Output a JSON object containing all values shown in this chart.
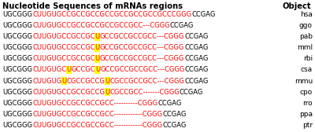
{
  "title": "Nucleotide Sequences of mRNAs regions",
  "title_right": "Object",
  "font_family": "Courier New",
  "title_fontsize": 7.2,
  "seq_fontsize": 6.0,
  "label_fontsize": 6.5,
  "rows": [
    {
      "object": "hsa",
      "segments": [
        {
          "text": "UGCGGG",
          "color": "black",
          "highlight": false
        },
        {
          "text": "CUUGUGCCGCCGCCGCCGCCGCCGCCGCCCGGG",
          "color": "red",
          "highlight": false
        },
        {
          "text": "CCGAG",
          "color": "black",
          "highlight": false
        }
      ]
    },
    {
      "object": "ggo",
      "segments": [
        {
          "text": "UGCGGG",
          "color": "black",
          "highlight": false
        },
        {
          "text": "CUUGUGCCGCCGCCGCCGCCGCC---CGGG",
          "color": "red",
          "highlight": false
        },
        {
          "text": "CCGAG",
          "color": "black",
          "highlight": false
        }
      ]
    },
    {
      "object": "pab",
      "segments": [
        {
          "text": "UGCGGG",
          "color": "black",
          "highlight": false
        },
        {
          "text": "CUUGUGCCGCCGC",
          "color": "red",
          "highlight": false
        },
        {
          "text": "U",
          "color": "red",
          "highlight": true
        },
        {
          "text": "GCCGCCGCCGCC---CGGG",
          "color": "red",
          "highlight": false
        },
        {
          "text": "CCGAG",
          "color": "black",
          "highlight": false
        }
      ]
    },
    {
      "object": "mml",
      "segments": [
        {
          "text": "UGCGGG",
          "color": "black",
          "highlight": false
        },
        {
          "text": "CUUGUGCCGCCGC",
          "color": "red",
          "highlight": false
        },
        {
          "text": "U",
          "color": "red",
          "highlight": true
        },
        {
          "text": "GCCGCCGCCGCC---CGGG",
          "color": "red",
          "highlight": false
        },
        {
          "text": "CCGAG",
          "color": "black",
          "highlight": false
        }
      ]
    },
    {
      "object": "rbi",
      "segments": [
        {
          "text": "UGCGGG",
          "color": "black",
          "highlight": false
        },
        {
          "text": "CUUGUGCCGCCGC",
          "color": "red",
          "highlight": false
        },
        {
          "text": "U",
          "color": "red",
          "highlight": true
        },
        {
          "text": "GCCGCCGCCGCC---CGGG",
          "color": "red",
          "highlight": false
        },
        {
          "text": "CCGAG",
          "color": "black",
          "highlight": false
        }
      ]
    },
    {
      "object": "csa",
      "segments": [
        {
          "text": "UGCGGG",
          "color": "black",
          "highlight": false
        },
        {
          "text": "CUUGUGC",
          "color": "red",
          "highlight": false
        },
        {
          "text": "U",
          "color": "red",
          "highlight": true
        },
        {
          "text": "GCCGC",
          "color": "red",
          "highlight": false
        },
        {
          "text": "U",
          "color": "red",
          "highlight": true
        },
        {
          "text": "GCCGCCGCCGCC---CGGG",
          "color": "red",
          "highlight": false
        },
        {
          "text": "CCGAG",
          "color": "black",
          "highlight": false
        }
      ]
    },
    {
      "object": "mmu",
      "segments": [
        {
          "text": "UGCGGG",
          "color": "black",
          "highlight": false
        },
        {
          "text": "CUUGUG",
          "color": "red",
          "highlight": false
        },
        {
          "text": "U",
          "color": "red",
          "highlight": true
        },
        {
          "text": "CGCCGCCG",
          "color": "red",
          "highlight": false
        },
        {
          "text": "U",
          "color": "red",
          "highlight": true
        },
        {
          "text": "CGCCGCCGCC---CGGG",
          "color": "red",
          "highlight": false
        },
        {
          "text": "CCGAG",
          "color": "black",
          "highlight": false
        }
      ]
    },
    {
      "object": "cpo",
      "segments": [
        {
          "text": "UGCGGG",
          "color": "black",
          "highlight": false
        },
        {
          "text": "CUUGUGCCGCCGCCG",
          "color": "red",
          "highlight": false
        },
        {
          "text": "U",
          "color": "red",
          "highlight": true
        },
        {
          "text": "CGCCGCC-------CGGG",
          "color": "red",
          "highlight": false
        },
        {
          "text": "CCGAG",
          "color": "black",
          "highlight": false
        }
      ]
    },
    {
      "object": "rro",
      "segments": [
        {
          "text": "UGCGGG",
          "color": "black",
          "highlight": false
        },
        {
          "text": "CUUGUGCCGCCGCCGCC----------CGGG",
          "color": "red",
          "highlight": false
        },
        {
          "text": "CCGAG",
          "color": "black",
          "highlight": false
        }
      ]
    },
    {
      "object": "ppa",
      "segments": [
        {
          "text": "UGCGGG",
          "color": "black",
          "highlight": false
        },
        {
          "text": "CUUGUGCCGCCGCCGCC------------CGGG",
          "color": "red",
          "highlight": false
        },
        {
          "text": "CCGAG",
          "color": "black",
          "highlight": false
        }
      ]
    },
    {
      "object": "ptr",
      "segments": [
        {
          "text": "UGCGGG",
          "color": "black",
          "highlight": false
        },
        {
          "text": "CUUGUGCCGCCGCCGCC------------CGGG",
          "color": "red",
          "highlight": false
        },
        {
          "text": "CCGAG",
          "color": "black",
          "highlight": false
        }
      ]
    }
  ],
  "highlight_color": "#FFFF00",
  "bg_color": "#FFFFFF"
}
